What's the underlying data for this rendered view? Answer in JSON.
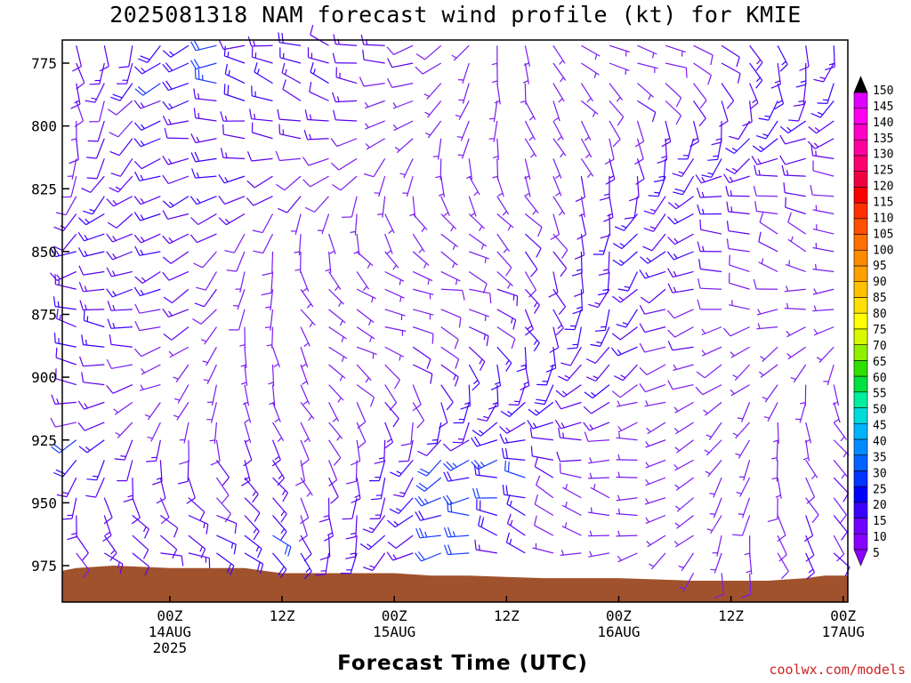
{
  "chart_data": {
    "type": "wind-barb-profile",
    "title": "2025081318 NAM forecast wind profile (kt) for KMIE",
    "xlabel": "Forecast Time (UTC)",
    "credit": "coolwx.com/models",
    "y_axis": {
      "quantity": "pressure",
      "inverted": true,
      "range": [
        964,
        990
      ],
      "ticks": [
        775,
        800,
        825,
        850,
        875,
        900,
        925,
        950,
        975
      ]
    },
    "x_axis": {
      "range_hours": [
        -11.5,
        72.5
      ],
      "ticks": [
        {
          "hour": 0,
          "label": "00Z",
          "date": "14AUG",
          "year": "2025"
        },
        {
          "hour": 12,
          "label": "12Z",
          "date": "",
          "year": ""
        },
        {
          "hour": 24,
          "label": "00Z",
          "date": "15AUG",
          "year": ""
        },
        {
          "hour": 36,
          "label": "12Z",
          "date": "",
          "year": ""
        },
        {
          "hour": 48,
          "label": "00Z",
          "date": "16AUG",
          "year": ""
        },
        {
          "hour": 60,
          "label": "12Z",
          "date": "",
          "year": ""
        },
        {
          "hour": 72,
          "label": "00Z",
          "date": "17AUG",
          "year": ""
        }
      ]
    },
    "colorbar": {
      "min": 5,
      "max": 150,
      "step": 5,
      "labels": [
        150,
        145,
        140,
        135,
        130,
        125,
        120,
        115,
        110,
        105,
        100,
        95,
        90,
        85,
        80,
        75,
        70,
        65,
        60,
        55,
        50,
        45,
        40,
        35,
        30,
        25,
        20,
        15,
        10,
        5
      ],
      "colors": [
        "#8a00ff",
        "#7000ff",
        "#3a00ff",
        "#0000ff",
        "#0034ff",
        "#0062ff",
        "#008cff",
        "#00b4ff",
        "#00dcdc",
        "#00f0a0",
        "#00e040",
        "#30e000",
        "#90f000",
        "#d8f800",
        "#ffff00",
        "#ffe000",
        "#ffc000",
        "#ffa000",
        "#ff8c00",
        "#ff7000",
        "#ff5000",
        "#ff3000",
        "#ff0000",
        "#f00040",
        "#ff0070",
        "#ff00a0",
        "#ff00c8",
        "#ff00f0",
        "#e000ff"
      ],
      "arrow_low": "#8a00ff",
      "arrow_high": "#000000"
    },
    "wind_field": {
      "hour_step": 3,
      "pressure_levels": [
        768,
        775,
        783,
        790,
        798,
        805,
        813,
        820,
        828,
        835,
        843,
        850,
        858,
        865,
        873,
        880,
        888,
        895,
        903,
        910,
        918,
        925,
        933,
        940,
        948,
        955,
        963,
        970,
        978
      ],
      "speed_range_kt": [
        5,
        30
      ]
    },
    "surface": {
      "color": "#a0522d",
      "pressure_by_hour": [
        {
          "h": -11.5,
          "p": 977
        },
        {
          "h": -10,
          "p": 976
        },
        {
          "h": -6,
          "p": 975
        },
        {
          "h": -3,
          "p": 975.5
        },
        {
          "h": 0,
          "p": 976
        },
        {
          "h": 4,
          "p": 976
        },
        {
          "h": 8,
          "p": 976
        },
        {
          "h": 10,
          "p": 977
        },
        {
          "h": 12,
          "p": 978
        },
        {
          "h": 18,
          "p": 978
        },
        {
          "h": 24,
          "p": 978
        },
        {
          "h": 28,
          "p": 979
        },
        {
          "h": 32,
          "p": 979
        },
        {
          "h": 36,
          "p": 979.5
        },
        {
          "h": 40,
          "p": 980
        },
        {
          "h": 44,
          "p": 980
        },
        {
          "h": 48,
          "p": 980
        },
        {
          "h": 52,
          "p": 980.5
        },
        {
          "h": 56,
          "p": 981
        },
        {
          "h": 60,
          "p": 981
        },
        {
          "h": 64,
          "p": 981
        },
        {
          "h": 68,
          "p": 980
        },
        {
          "h": 70,
          "p": 979
        },
        {
          "h": 72.5,
          "p": 979
        }
      ]
    }
  }
}
